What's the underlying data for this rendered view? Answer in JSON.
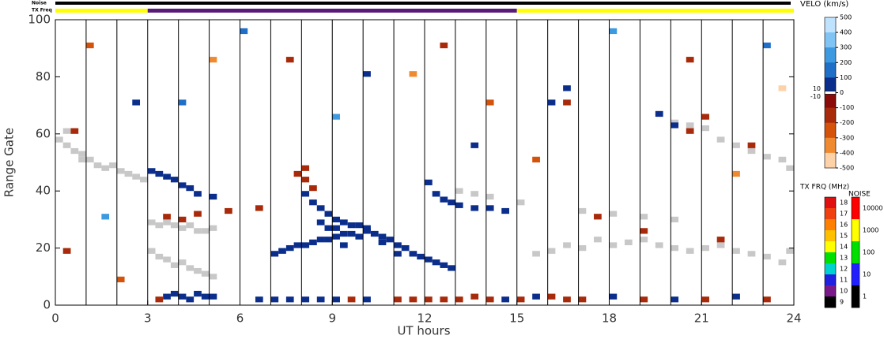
{
  "chart_data": {
    "type": "range-time",
    "x_label": "UT hours",
    "y_label": "Range Gate",
    "xlim": [
      0,
      24
    ],
    "xticks": [
      0,
      3,
      6,
      9,
      12,
      15,
      18,
      21,
      24
    ],
    "ylim": [
      0,
      100
    ],
    "yticks": [
      0,
      20,
      40,
      60,
      80,
      100
    ],
    "vertical_lines": [
      1,
      2,
      3,
      4,
      5,
      6,
      7,
      8,
      9,
      10,
      11,
      12,
      13,
      14,
      15,
      16,
      17,
      18,
      19,
      20,
      21,
      22,
      23
    ],
    "noise_bar": {
      "label": "Noise",
      "color": "#000000"
    },
    "freq_bar": {
      "label": "TX Freq",
      "segments": [
        {
          "start": 0,
          "end": 3,
          "color": "#ffff00"
        },
        {
          "start": 3,
          "end": 15,
          "color": "#5a1a7a"
        },
        {
          "start": 15,
          "end": 24,
          "color": "#ffff00"
        }
      ]
    },
    "velocity": {
      "colorbar": {
        "title": "VELO (km/s)",
        "ticks": [
          500,
          400,
          300,
          200,
          100,
          0,
          -100,
          -200,
          -300,
          -400,
          -500
        ],
        "inner_ticks": [
          10,
          -10
        ],
        "colors": [
          "#bfe3ff",
          "#7fc4f5",
          "#3e9ae0",
          "#1f6fc8",
          "#0b2e8c",
          "#8b0a0a",
          "#a82a0a",
          "#d4520a",
          "#f08a30",
          "#fdd2a8"
        ]
      },
      "cells": [
        [
          7.0,
          17,
          80
        ],
        [
          7.25,
          18,
          80
        ],
        [
          7.5,
          19,
          80
        ],
        [
          7.75,
          20,
          80
        ],
        [
          8.0,
          20,
          80
        ],
        [
          8.25,
          21,
          80
        ],
        [
          8.5,
          22,
          80
        ],
        [
          8.75,
          22,
          80
        ],
        [
          9.0,
          23,
          80
        ],
        [
          9.25,
          24,
          80
        ],
        [
          9.5,
          24,
          80
        ],
        [
          9.75,
          23,
          80
        ],
        [
          10.0,
          25,
          80
        ],
        [
          10.25,
          24,
          80
        ],
        [
          10.5,
          23,
          80
        ],
        [
          10.75,
          22,
          80
        ],
        [
          11.0,
          20,
          80
        ],
        [
          11.25,
          19,
          80
        ],
        [
          11.5,
          17,
          80
        ],
        [
          11.75,
          16,
          80
        ],
        [
          12.0,
          15,
          80
        ],
        [
          12.25,
          14,
          80
        ],
        [
          12.5,
          13,
          80
        ],
        [
          12.75,
          12,
          80
        ],
        [
          8.0,
          38,
          80
        ],
        [
          8.25,
          35,
          80
        ],
        [
          8.5,
          33,
          80
        ],
        [
          8.75,
          31,
          80
        ],
        [
          9.0,
          29,
          80
        ],
        [
          9.25,
          28,
          80
        ],
        [
          9.5,
          27,
          80
        ],
        [
          9.75,
          27,
          80
        ],
        [
          10.0,
          26,
          80
        ],
        [
          8.5,
          28,
          80
        ],
        [
          8.75,
          26,
          80
        ],
        [
          9.0,
          26,
          80
        ],
        [
          9.25,
          20,
          80
        ],
        [
          10.5,
          21,
          80
        ],
        [
          11.0,
          17,
          80
        ],
        [
          3.5,
          2,
          80
        ],
        [
          3.75,
          3,
          80
        ],
        [
          4.0,
          2,
          80
        ],
        [
          4.25,
          1,
          80
        ],
        [
          4.5,
          3,
          80
        ],
        [
          4.75,
          2,
          80
        ],
        [
          5.0,
          2,
          80
        ],
        [
          6.5,
          1,
          80
        ],
        [
          7.0,
          1,
          80
        ],
        [
          7.5,
          1,
          80
        ],
        [
          8.0,
          1,
          80
        ],
        [
          8.5,
          1,
          80
        ],
        [
          9.0,
          1,
          80
        ],
        [
          10.0,
          1,
          80
        ],
        [
          14.5,
          1,
          80
        ],
        [
          15.5,
          2,
          80
        ],
        [
          18,
          2,
          80
        ],
        [
          20,
          1,
          80
        ],
        [
          22,
          2,
          80
        ],
        [
          3.0,
          46,
          80
        ],
        [
          3.25,
          45,
          80
        ],
        [
          3.5,
          44,
          80
        ],
        [
          3.75,
          43,
          80
        ],
        [
          4.0,
          41,
          80
        ],
        [
          4.25,
          40,
          80
        ],
        [
          4.5,
          38,
          80
        ],
        [
          5.0,
          37,
          80
        ],
        [
          12.0,
          42,
          80
        ],
        [
          12.25,
          38,
          80
        ],
        [
          12.5,
          36,
          80
        ],
        [
          12.75,
          35,
          80
        ],
        [
          13.0,
          34,
          80
        ],
        [
          13.5,
          33,
          80
        ],
        [
          14.0,
          33,
          80
        ],
        [
          14.5,
          32,
          80
        ],
        [
          16,
          70,
          80
        ],
        [
          16.5,
          75,
          80
        ],
        [
          19.5,
          66,
          80
        ],
        [
          20,
          62,
          80
        ],
        [
          7.75,
          45,
          -150
        ],
        [
          8.0,
          43,
          -150
        ],
        [
          8.25,
          40,
          -150
        ],
        [
          8.0,
          47,
          -150
        ],
        [
          3.5,
          30,
          -150
        ],
        [
          4.0,
          29,
          -150
        ],
        [
          4.5,
          31,
          -150
        ],
        [
          5.5,
          32,
          -150
        ],
        [
          6.5,
          33,
          -150
        ],
        [
          11,
          1,
          -150
        ],
        [
          11.5,
          1,
          -150
        ],
        [
          12,
          1,
          -150
        ],
        [
          12.5,
          1,
          -150
        ],
        [
          13,
          1,
          -150
        ],
        [
          13.5,
          2,
          -150
        ],
        [
          14,
          1,
          -150
        ],
        [
          15,
          1,
          -150
        ],
        [
          16,
          2,
          -150
        ],
        [
          16.5,
          1,
          -150
        ],
        [
          17,
          1,
          -150
        ],
        [
          19,
          1,
          -150
        ],
        [
          21,
          1,
          -150
        ],
        [
          23,
          1,
          -150
        ],
        [
          3.25,
          1,
          -150
        ],
        [
          9.5,
          1,
          -150
        ],
        [
          16.5,
          70,
          -150
        ],
        [
          20.5,
          60,
          -150
        ],
        [
          21,
          65,
          -150
        ],
        [
          22.5,
          55,
          -150
        ],
        [
          19,
          25,
          -150
        ],
        [
          21.5,
          22,
          -150
        ],
        [
          17.5,
          30,
          -150
        ],
        [
          0.5,
          60,
          -150
        ],
        [
          0.25,
          18,
          -150
        ],
        [
          1,
          90,
          -200
        ],
        [
          2.5,
          70,
          100
        ],
        [
          5,
          85,
          -300
        ],
        [
          6,
          95,
          200
        ],
        [
          10,
          80,
          100
        ],
        [
          12.5,
          90,
          -100
        ],
        [
          14,
          70,
          -250
        ],
        [
          18,
          95,
          300
        ],
        [
          20.5,
          85,
          -100
        ],
        [
          23,
          90,
          200
        ],
        [
          1.5,
          30,
          300
        ],
        [
          2,
          8,
          -200
        ],
        [
          23.5,
          75,
          -400
        ],
        [
          22,
          45,
          -300
        ],
        [
          4,
          70,
          150
        ],
        [
          7.5,
          85,
          -150
        ],
        [
          9,
          65,
          250
        ],
        [
          11.5,
          80,
          -350
        ],
        [
          13.5,
          55,
          100
        ],
        [
          15.5,
          50,
          -200
        ]
      ]
    },
    "ground_scatter": {
      "color": "#c8c8c8",
      "cells": [
        [
          0,
          57
        ],
        [
          0.25,
          55
        ],
        [
          0.5,
          53
        ],
        [
          0.75,
          50
        ],
        [
          1,
          50
        ],
        [
          1.25,
          48
        ],
        [
          1.5,
          47
        ],
        [
          1.75,
          48
        ],
        [
          2,
          46
        ],
        [
          2.25,
          45
        ],
        [
          2.5,
          44
        ],
        [
          2.75,
          43
        ],
        [
          0.25,
          60
        ],
        [
          0.75,
          52
        ],
        [
          3,
          28
        ],
        [
          3.25,
          27
        ],
        [
          3.5,
          28
        ],
        [
          3.75,
          27
        ],
        [
          4,
          26
        ],
        [
          4.25,
          27
        ],
        [
          4.5,
          25
        ],
        [
          4.75,
          25
        ],
        [
          5,
          26
        ],
        [
          3,
          18
        ],
        [
          3.25,
          16
        ],
        [
          3.5,
          15
        ],
        [
          3.75,
          13
        ],
        [
          4,
          14
        ],
        [
          4.25,
          12
        ],
        [
          4.5,
          11
        ],
        [
          4.75,
          10
        ],
        [
          5,
          9
        ],
        [
          13,
          39
        ],
        [
          13.5,
          38
        ],
        [
          14,
          37
        ],
        [
          15,
          35
        ],
        [
          15.5,
          17
        ],
        [
          16,
          18
        ],
        [
          16.5,
          20
        ],
        [
          17,
          19
        ],
        [
          17.5,
          22
        ],
        [
          18,
          20
        ],
        [
          18.5,
          21
        ],
        [
          19,
          22
        ],
        [
          19.5,
          20
        ],
        [
          20,
          19
        ],
        [
          20.5,
          18
        ],
        [
          21,
          19
        ],
        [
          21.5,
          20
        ],
        [
          22,
          18
        ],
        [
          22.5,
          17
        ],
        [
          23,
          16
        ],
        [
          23.5,
          14
        ],
        [
          23.75,
          18
        ],
        [
          17,
          32
        ],
        [
          18,
          31
        ],
        [
          19,
          30
        ],
        [
          20,
          29
        ],
        [
          19.5,
          66
        ],
        [
          20,
          63
        ],
        [
          20.5,
          62
        ],
        [
          21,
          61
        ],
        [
          21.5,
          57
        ],
        [
          22,
          55
        ],
        [
          22.5,
          53
        ],
        [
          23,
          51
        ],
        [
          23.5,
          50
        ],
        [
          23.75,
          47
        ]
      ]
    },
    "tx_freq": {
      "label": "TX FRQ (MHz)",
      "ticks": [
        18,
        17,
        16,
        15,
        14,
        13,
        12,
        11,
        10,
        9
      ],
      "colors": [
        "#e01010",
        "#f04010",
        "#ff8000",
        "#ffc000",
        "#ffff00",
        "#00e000",
        "#00d0d0",
        "#2020e0",
        "#7a1a8a",
        "#000000"
      ]
    },
    "noise": {
      "label": "NOISE",
      "ticks": [
        10000,
        1000,
        100,
        10,
        1
      ],
      "colors": [
        "#ff0000",
        "#ffff00",
        "#00e000",
        "#2020ff",
        "#000000"
      ]
    }
  }
}
